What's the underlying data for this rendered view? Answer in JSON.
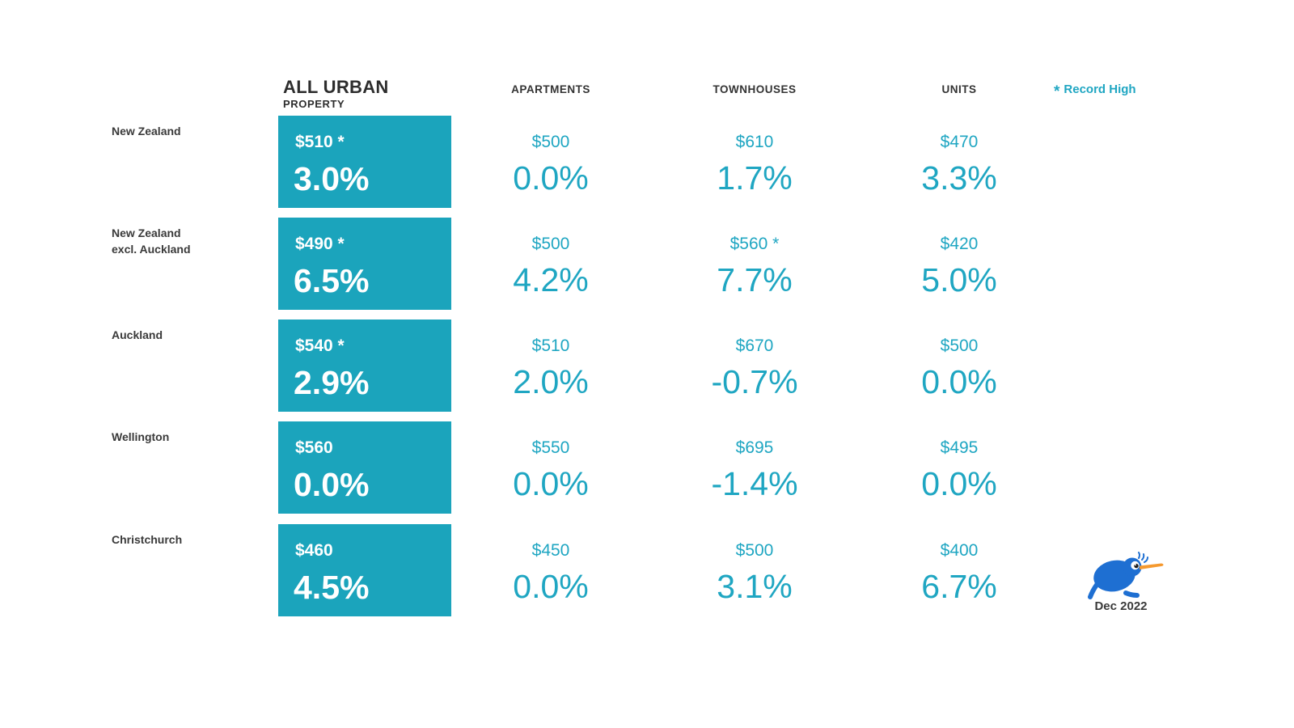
{
  "header": {
    "all_urban_title": "ALL URBAN",
    "all_urban_subtitle": "PROPERTY",
    "apartments": "APARTMENTS",
    "townhouses": "TOWNHOUSES",
    "units": "UNITS",
    "legend_symbol": "*",
    "legend_label": "Record High"
  },
  "rows": [
    {
      "label_line1": "New Zealand",
      "label_line2": "",
      "cells": {
        "all_urban": {
          "price": "$510",
          "record": true,
          "pct": "3.0%"
        },
        "apartments": {
          "price": "$500",
          "record": false,
          "pct": "0.0%"
        },
        "townhouses": {
          "price": "$610",
          "record": false,
          "pct": "1.7%"
        },
        "units": {
          "price": "$470",
          "record": false,
          "pct": "3.3%"
        }
      }
    },
    {
      "label_line1": "New Zealand",
      "label_line2": "excl. Auckland",
      "cells": {
        "all_urban": {
          "price": "$490",
          "record": true,
          "pct": "6.5%"
        },
        "apartments": {
          "price": "$500",
          "record": false,
          "pct": "4.2%"
        },
        "townhouses": {
          "price": "$560",
          "record": true,
          "pct": "7.7%"
        },
        "units": {
          "price": "$420",
          "record": false,
          "pct": "5.0%"
        }
      }
    },
    {
      "label_line1": "Auckland",
      "label_line2": "",
      "cells": {
        "all_urban": {
          "price": "$540",
          "record": true,
          "pct": "2.9%"
        },
        "apartments": {
          "price": "$510",
          "record": false,
          "pct": "2.0%"
        },
        "townhouses": {
          "price": "$670",
          "record": false,
          "pct": "-0.7%"
        },
        "units": {
          "price": "$500",
          "record": false,
          "pct": "0.0%"
        }
      }
    },
    {
      "label_line1": "Wellington",
      "label_line2": "",
      "cells": {
        "all_urban": {
          "price": "$560",
          "record": false,
          "pct": "0.0%"
        },
        "apartments": {
          "price": "$550",
          "record": false,
          "pct": "0.0%"
        },
        "townhouses": {
          "price": "$695",
          "record": false,
          "pct": "-1.4%"
        },
        "units": {
          "price": "$495",
          "record": false,
          "pct": "0.0%"
        }
      }
    },
    {
      "label_line1": "Christchurch",
      "label_line2": "",
      "cells": {
        "all_urban": {
          "price": "$460",
          "record": false,
          "pct": "4.5%"
        },
        "apartments": {
          "price": "$450",
          "record": false,
          "pct": "0.0%"
        },
        "townhouses": {
          "price": "$500",
          "record": false,
          "pct": "3.1%"
        },
        "units": {
          "price": "$400",
          "record": false,
          "pct": "6.7%"
        }
      }
    }
  ],
  "footer": {
    "date": "Dec 2022",
    "logo_icon": "kiwi-bird-icon"
  },
  "colors": {
    "box_teal": "#1ba4bc",
    "text_teal": "#1fa6c2",
    "dark_text": "#333333",
    "label_text": "#3a3a3a",
    "kiwi_blue": "#1e6fd2",
    "beak_orange": "#f5992e"
  },
  "chart_data": {
    "type": "table",
    "columns": [
      "ALL URBAN PROPERTY",
      "APARTMENTS",
      "TOWNHOUSES",
      "UNITS"
    ],
    "row_labels": [
      "New Zealand",
      "New Zealand excl. Auckland",
      "Auckland",
      "Wellington",
      "Christchurch"
    ],
    "legend": "* Record High",
    "period": "Dec 2022",
    "cells": [
      [
        {
          "price": 510,
          "change_pct": 3.0,
          "record_high": true
        },
        {
          "price": 500,
          "change_pct": 0.0,
          "record_high": false
        },
        {
          "price": 610,
          "change_pct": 1.7,
          "record_high": false
        },
        {
          "price": 470,
          "change_pct": 3.3,
          "record_high": false
        }
      ],
      [
        {
          "price": 490,
          "change_pct": 6.5,
          "record_high": true
        },
        {
          "price": 500,
          "change_pct": 4.2,
          "record_high": false
        },
        {
          "price": 560,
          "change_pct": 7.7,
          "record_high": true
        },
        {
          "price": 420,
          "change_pct": 5.0,
          "record_high": false
        }
      ],
      [
        {
          "price": 540,
          "change_pct": 2.9,
          "record_high": true
        },
        {
          "price": 510,
          "change_pct": 2.0,
          "record_high": false
        },
        {
          "price": 670,
          "change_pct": -0.7,
          "record_high": false
        },
        {
          "price": 500,
          "change_pct": 0.0,
          "record_high": false
        }
      ],
      [
        {
          "price": 560,
          "change_pct": 0.0,
          "record_high": false
        },
        {
          "price": 550,
          "change_pct": 0.0,
          "record_high": false
        },
        {
          "price": 695,
          "change_pct": -1.4,
          "record_high": false
        },
        {
          "price": 495,
          "change_pct": 0.0,
          "record_high": false
        }
      ],
      [
        {
          "price": 460,
          "change_pct": 4.5,
          "record_high": false
        },
        {
          "price": 450,
          "change_pct": 0.0,
          "record_high": false
        },
        {
          "price": 500,
          "change_pct": 3.1,
          "record_high": false
        },
        {
          "price": 400,
          "change_pct": 6.7,
          "record_high": false
        }
      ]
    ]
  }
}
